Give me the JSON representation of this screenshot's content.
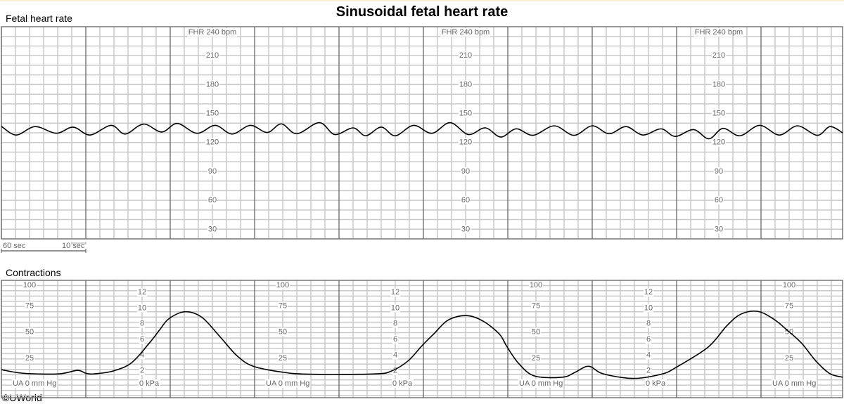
{
  "title": "Sinusoidal fetal heart rate",
  "copyright": "©UWorld",
  "fhr_panel": {
    "label": "Fetal heart rate",
    "axis_header": "FHR 240 bpm",
    "ticks": [
      "210",
      "180",
      "150",
      "120",
      "90",
      "60",
      "30"
    ]
  },
  "scale_bar": {
    "major": "60 sec",
    "minor": "10 sec"
  },
  "ua_panel": {
    "label": "Contractions",
    "mmhg_ticks": [
      "100",
      "75",
      "50",
      "25"
    ],
    "mmhg_zero_label": "UA  0  mm Hg",
    "kpa_ticks": [
      "12",
      "10",
      "8",
      "6",
      "4",
      "2"
    ],
    "kpa_zero_label": "0 kPa"
  },
  "colors": {
    "trace": "#000000",
    "minor_grid": "#c9c9c9",
    "major_grid": "#5a5a5a",
    "label": "#666666"
  },
  "chart_data": [
    {
      "type": "line",
      "name": "Fetal heart rate",
      "x_unit": "sec",
      "y_unit": "bpm",
      "xlim": [
        0,
        598
      ],
      "ylim": [
        20,
        240
      ],
      "grid": true,
      "points": [
        [
          0,
          136.7
        ],
        [
          10.5,
          127.7
        ],
        [
          24,
          136.4
        ],
        [
          39,
          129.5
        ],
        [
          51,
          135.9
        ],
        [
          63,
          127.7
        ],
        [
          78,
          137.7
        ],
        [
          88,
          128.7
        ],
        [
          101,
          139
        ],
        [
          114,
          130.8
        ],
        [
          125,
          139.7
        ],
        [
          139,
          129.5
        ],
        [
          152,
          137.7
        ],
        [
          164,
          128.7
        ],
        [
          177,
          137.7
        ],
        [
          189,
          130.3
        ],
        [
          199,
          139.2
        ],
        [
          210,
          129
        ],
        [
          226,
          140.5
        ],
        [
          237,
          128.2
        ],
        [
          250,
          135.1
        ],
        [
          259,
          126.9
        ],
        [
          270,
          135.9
        ],
        [
          280,
          126.9
        ],
        [
          293,
          137.7
        ],
        [
          306,
          129.5
        ],
        [
          319,
          140.5
        ],
        [
          332,
          128.2
        ],
        [
          344,
          135.1
        ],
        [
          355,
          125.6
        ],
        [
          366,
          134.1
        ],
        [
          378,
          127.4
        ],
        [
          393,
          137.2
        ],
        [
          407,
          127.4
        ],
        [
          420,
          137.2
        ],
        [
          432,
          129
        ],
        [
          444,
          136.4
        ],
        [
          456,
          127.7
        ],
        [
          469,
          134.1
        ],
        [
          479,
          126.2
        ],
        [
          492,
          133.3
        ],
        [
          503,
          123.8
        ],
        [
          513,
          134.6
        ],
        [
          525,
          126.9
        ],
        [
          539,
          137.7
        ],
        [
          553,
          127.7
        ],
        [
          566,
          137.2
        ],
        [
          580,
          127.4
        ],
        [
          589,
          136.4
        ],
        [
          598,
          130
        ]
      ]
    },
    {
      "type": "line",
      "name": "Contractions",
      "x_unit": "sec",
      "y_unit": "mm Hg",
      "xlim": [
        0,
        598
      ],
      "ylim": [
        -12,
        100
      ],
      "grid": true,
      "points": [
        [
          0,
          14.7
        ],
        [
          15.5,
          11.3
        ],
        [
          40.5,
          10.7
        ],
        [
          54,
          14
        ],
        [
          60,
          11.3
        ],
        [
          65.5,
          10.7
        ],
        [
          79,
          13.3
        ],
        [
          92.5,
          21.3
        ],
        [
          105.5,
          40.7
        ],
        [
          112.5,
          52.7
        ],
        [
          119,
          63.3
        ],
        [
          130.5,
          70
        ],
        [
          142.5,
          64.7
        ],
        [
          155.5,
          46
        ],
        [
          167.5,
          28
        ],
        [
          179,
          18
        ],
        [
          199,
          12.5
        ],
        [
          219,
          10.4
        ],
        [
          265.5,
          10.7
        ],
        [
          277.5,
          13.6
        ],
        [
          289,
          23
        ],
        [
          299,
          37.6
        ],
        [
          307.5,
          49
        ],
        [
          317.5,
          62
        ],
        [
          330.5,
          66.4
        ],
        [
          342.5,
          61
        ],
        [
          354,
          48.7
        ],
        [
          359,
          37.6
        ],
        [
          367.5,
          21
        ],
        [
          379,
          8.7
        ],
        [
          399,
          7.6
        ],
        [
          407.5,
          12
        ],
        [
          417.5,
          18
        ],
        [
          427.5,
          10.9
        ],
        [
          449,
          6.4
        ],
        [
          469,
          10.4
        ],
        [
          479,
          16.4
        ],
        [
          502.5,
          36.4
        ],
        [
          515.5,
          56.4
        ],
        [
          525.5,
          67.6
        ],
        [
          537.5,
          70.4
        ],
        [
          549,
          63
        ],
        [
          559,
          52
        ],
        [
          569,
          39.8
        ],
        [
          579,
          23
        ],
        [
          589,
          10.9
        ],
        [
          598,
          7.6
        ]
      ]
    }
  ]
}
